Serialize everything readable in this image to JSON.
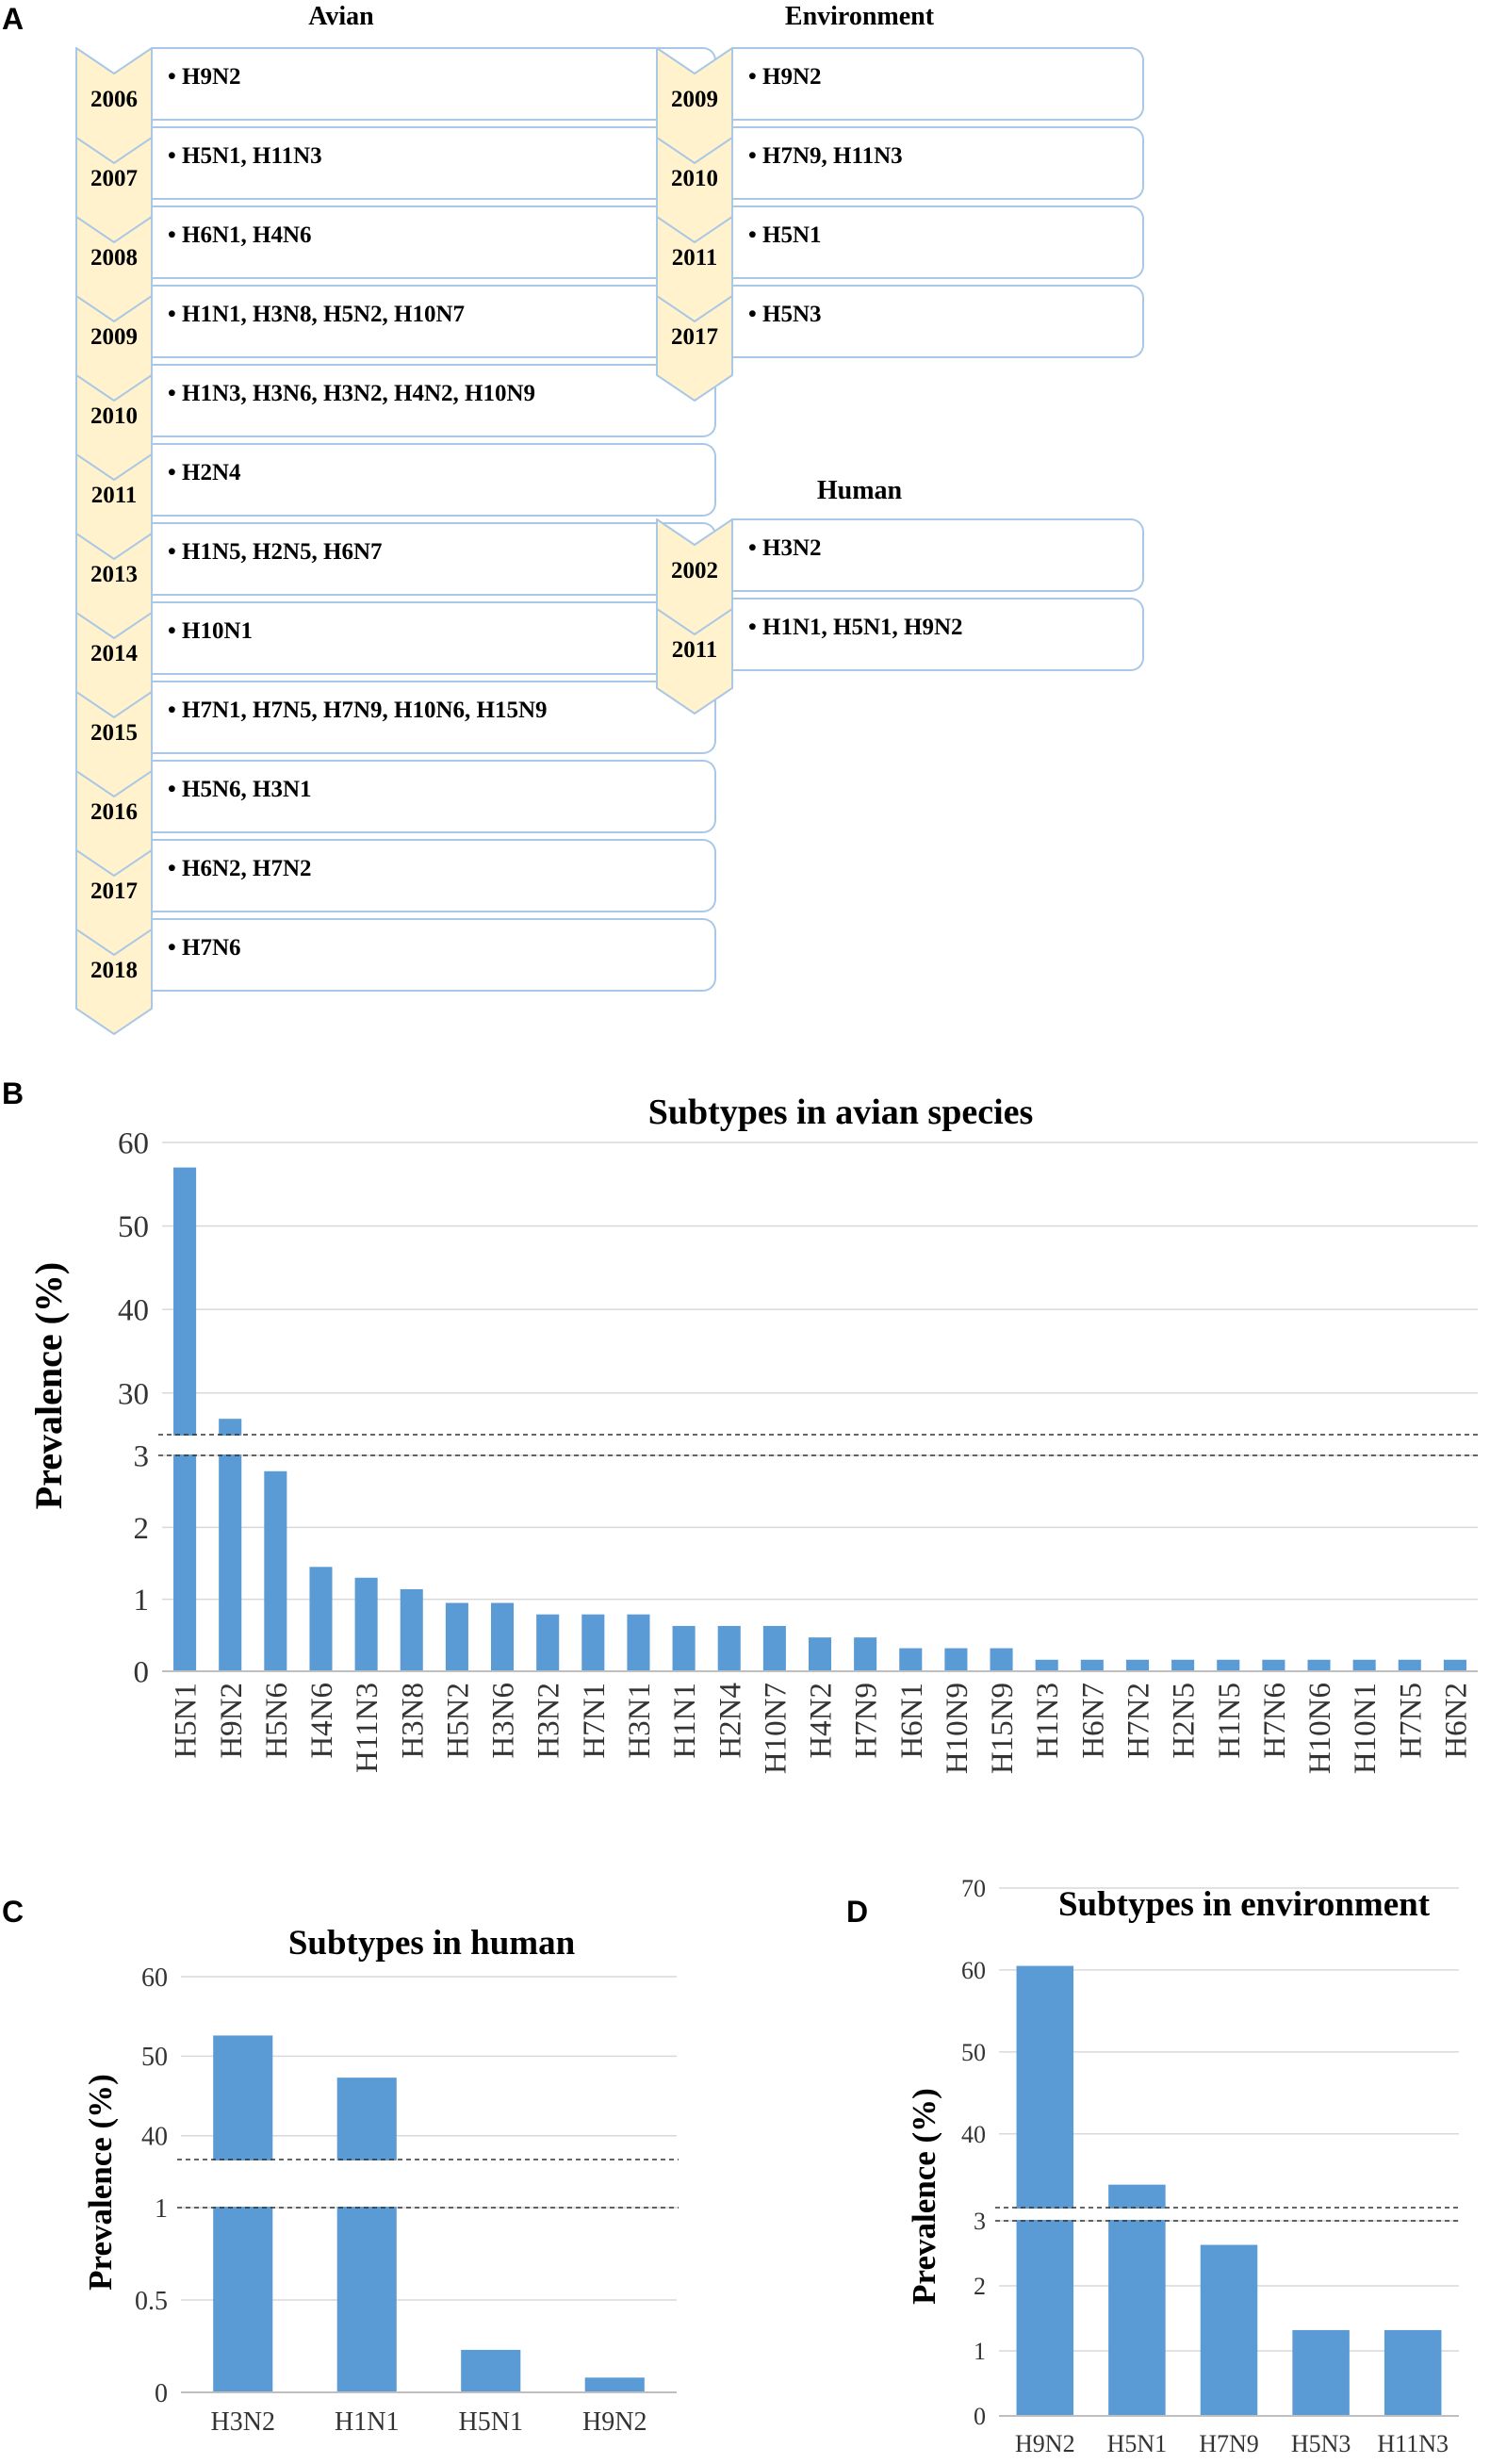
{
  "panel_labels": {
    "a": "A",
    "b": "B",
    "c": "C",
    "d": "D"
  },
  "timeline": {
    "avian": {
      "title": "Avian",
      "entries": [
        {
          "year": "2006",
          "text": "• H9N2"
        },
        {
          "year": "2007",
          "text": "• H5N1, H11N3"
        },
        {
          "year": "2008",
          "text": "• H6N1, H4N6"
        },
        {
          "year": "2009",
          "text": "• H1N1, H3N8, H5N2, H10N7"
        },
        {
          "year": "2010",
          "text": "• H1N3, H3N6, H3N2, H4N2, H10N9"
        },
        {
          "year": "2011",
          "text": "• H2N4"
        },
        {
          "year": "2013",
          "text": "• H1N5, H2N5, H6N7"
        },
        {
          "year": "2014",
          "text": "• H10N1"
        },
        {
          "year": "2015",
          "text": "• H7N1, H7N5, H7N9, H10N6, H15N9"
        },
        {
          "year": "2016",
          "text": "• H5N6, H3N1"
        },
        {
          "year": "2017",
          "text": "• H6N2, H7N2"
        },
        {
          "year": "2018",
          "text": "• H7N6"
        }
      ]
    },
    "environment": {
      "title": "Environment",
      "entries": [
        {
          "year": "2009",
          "text": "• H9N2"
        },
        {
          "year": "2010",
          "text": "• H7N9, H11N3"
        },
        {
          "year": "2011",
          "text": "• H5N1"
        },
        {
          "year": "2017",
          "text": "• H5N3"
        }
      ]
    },
    "human": {
      "title": "Human",
      "entries": [
        {
          "year": "2002",
          "text": "• H3N2"
        },
        {
          "year": "2011",
          "text": "• H1N1, H5N1, H9N2"
        }
      ]
    }
  },
  "colors": {
    "bar": "#5b9bd5",
    "grid": "#d9d9d9",
    "chevron_fill": "#fff2cc",
    "chevron_stroke": "#a9c7e6"
  },
  "chart_data": [
    {
      "id": "avian",
      "type": "bar",
      "title": "Subtypes in avian species",
      "ylabel": "Prevalence (%)",
      "xlabel": "",
      "broken_axis": true,
      "upper_ticks": [
        30,
        40,
        50,
        60
      ],
      "lower_ticks": [
        0,
        1,
        2,
        3
      ],
      "ylim_upper": [
        25,
        60
      ],
      "ylim_lower": [
        0,
        3
      ],
      "categories": [
        "H5N1",
        "H9N2",
        "H5N6",
        "H4N6",
        "H11N3",
        "H3N8",
        "H5N2",
        "H3N6",
        "H3N2",
        "H7N1",
        "H3N1",
        "H1N1",
        "H2N4",
        "H10N7",
        "H4N2",
        "H7N9",
        "H6N1",
        "H10N9",
        "H15N9",
        "H1N3",
        "H6N7",
        "H7N2",
        "H2N5",
        "H1N5",
        "H7N6",
        "H10N6",
        "H10N1",
        "H7N5",
        "H6N2"
      ],
      "values": [
        57,
        26.9,
        2.78,
        1.45,
        1.3,
        1.14,
        0.95,
        0.95,
        0.79,
        0.79,
        0.79,
        0.63,
        0.63,
        0.63,
        0.47,
        0.47,
        0.32,
        0.32,
        0.32,
        0.16,
        0.16,
        0.16,
        0.16,
        0.16,
        0.16,
        0.16,
        0.16,
        0.16,
        0.16
      ]
    },
    {
      "id": "human",
      "type": "bar",
      "title": "Subtypes in human",
      "ylabel": "Prevalence (%)",
      "xlabel": "",
      "broken_axis": true,
      "upper_ticks": [
        40,
        50,
        60
      ],
      "lower_ticks": [
        0,
        0.5,
        1
      ],
      "ylim_upper": [
        37,
        60
      ],
      "ylim_lower": [
        0,
        1
      ],
      "categories": [
        "H3N2",
        "H1N1",
        "H5N1",
        "H9N2"
      ],
      "values": [
        52.6,
        47.3,
        0.23,
        0.08
      ]
    },
    {
      "id": "environment",
      "type": "bar",
      "title": "Subtypes in environment",
      "ylabel": "Prevalence (%)",
      "xlabel": "",
      "broken_axis": true,
      "upper_ticks": [
        40,
        50,
        60,
        70
      ],
      "lower_ticks": [
        0,
        1,
        2,
        3
      ],
      "ylim_upper": [
        31,
        70
      ],
      "ylim_lower": [
        0,
        3
      ],
      "categories": [
        "H9N2",
        "H5N1",
        "H7N9",
        "H5N3",
        "H11N3"
      ],
      "values": [
        60.5,
        33.8,
        2.63,
        1.32,
        1.32
      ]
    }
  ]
}
